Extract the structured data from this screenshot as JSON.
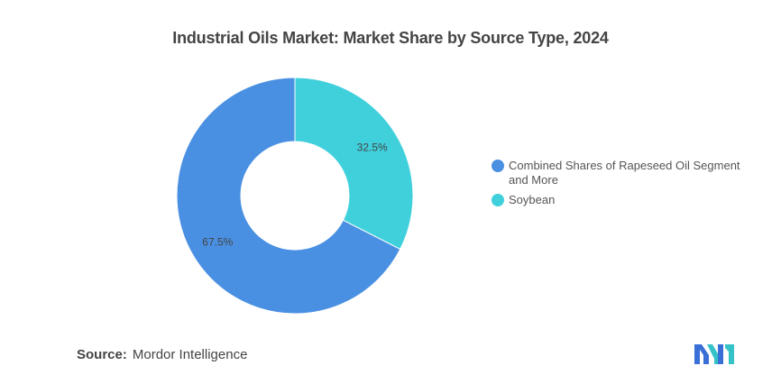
{
  "title": "Industrial Oils Market: Market Share by Source Type, 2024",
  "chart_data": {
    "type": "pie",
    "donut": true,
    "slices": [
      {
        "label": "Soybean",
        "value": 32.5,
        "display": "32.5%",
        "color": "#3fd0dc"
      },
      {
        "label": "Combined Shares of Rapeseed Oil Segment and More",
        "value": 67.5,
        "display": "67.5%",
        "color": "#4a90e2"
      }
    ],
    "legend_position": "right"
  },
  "legend": [
    {
      "label": "Combined Shares of Rapeseed Oil Segment and More",
      "color": "#4a90e2"
    },
    {
      "label": "Soybean",
      "color": "#3fd0dc"
    }
  ],
  "source": {
    "key": "Source:",
    "value": "Mordor Intelligence"
  },
  "logo": {
    "icon": "mordor-intelligence-logo",
    "colors": [
      "#3a6fd8",
      "#35c3c8"
    ]
  }
}
